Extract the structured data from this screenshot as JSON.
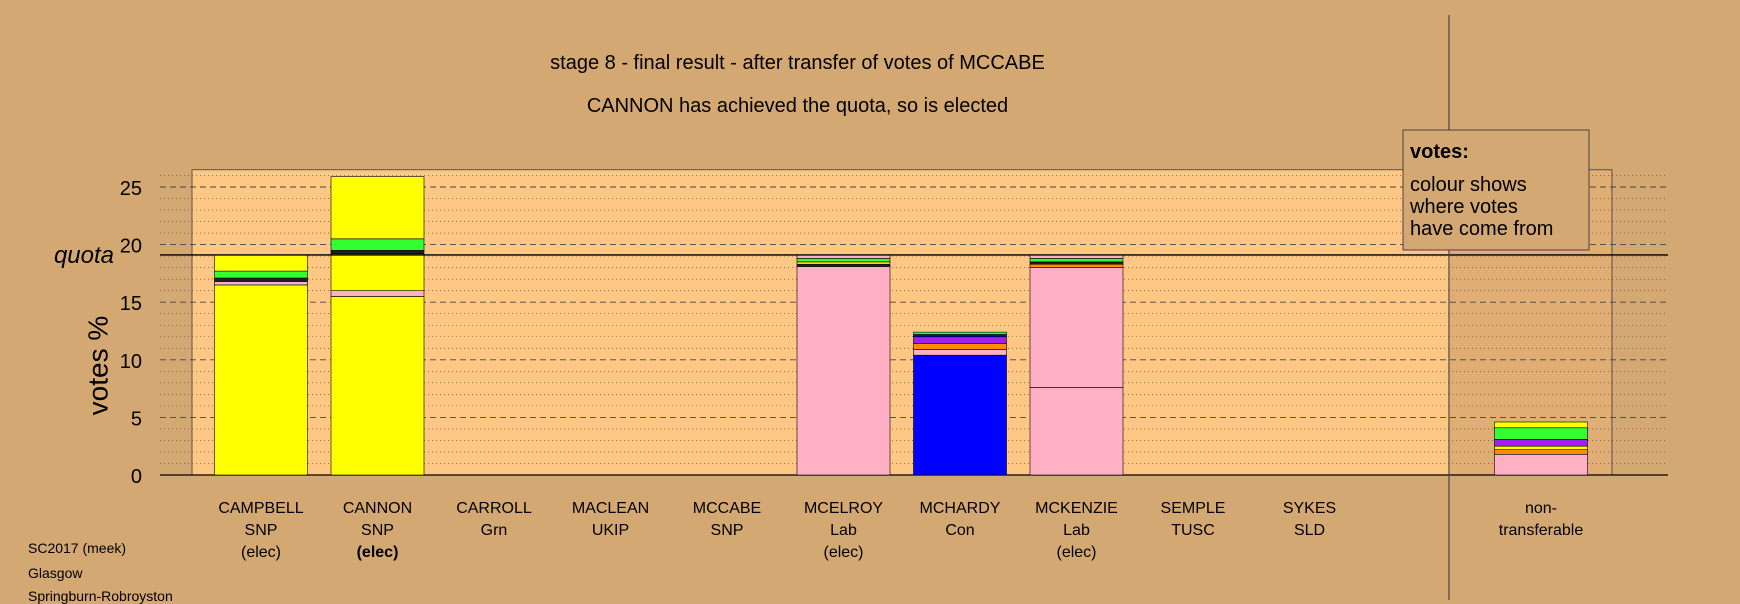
{
  "header": {
    "title": "stage 8 - final result - after transfer of votes of MCCABE",
    "subtitle": "CANNON has achieved the quota, so is elected"
  },
  "footer": {
    "line1": "SC2017 (meek)",
    "line2": "Glasgow",
    "line3": "Springburn-Robroyston"
  },
  "legend": {
    "title": "votes:",
    "lines": [
      "colour shows",
      "where votes",
      "have come from"
    ]
  },
  "colors": {
    "background": "#D4A872",
    "plot_bg": "#FFC784",
    "SNP": "#FFFF00",
    "Lab": "#FFB0C4",
    "Con": "#0000FF",
    "Grn": "#33FF33",
    "UKIP": "#A020F0",
    "TUSC": "#E05050",
    "SLD": "#FF8C00",
    "other": "#202020"
  },
  "chart_data": {
    "type": "bar",
    "stacked": true,
    "ylabel": "votes %",
    "ylim": [
      0,
      26.5
    ],
    "yticks": [
      0,
      5,
      10,
      15,
      20,
      25
    ],
    "quota": 19.1,
    "quota_label": "quota",
    "grid": "dashed every 5, dotted every 1",
    "legend_placement": "top-right",
    "bars": [
      {
        "name": "CAMPBELL",
        "party": "SNP",
        "status": "(elec)",
        "bold": false,
        "segments": [
          {
            "from": "SNP",
            "value": 16.5
          },
          {
            "from": "Lab",
            "value": 0.3
          },
          {
            "from": "other",
            "value": 0.3
          },
          {
            "from": "Grn",
            "value": 0.6
          },
          {
            "from": "SNP",
            "value": 1.4
          }
        ]
      },
      {
        "name": "CANNON",
        "party": "SNP",
        "status": "(elec)",
        "bold": true,
        "segments": [
          {
            "from": "SNP",
            "value": 15.5
          },
          {
            "from": "Lab",
            "value": 0.5
          },
          {
            "from": "SNP",
            "value": 3.2
          },
          {
            "from": "other",
            "value": 0.3
          },
          {
            "from": "Grn",
            "value": 1.0
          },
          {
            "from": "SNP",
            "value": 5.4
          }
        ]
      },
      {
        "name": "CARROLL",
        "party": "Grn",
        "status": "",
        "bold": false,
        "segments": []
      },
      {
        "name": "MACLEAN",
        "party": "UKIP",
        "status": "",
        "bold": false,
        "segments": []
      },
      {
        "name": "MCCABE",
        "party": "SNP",
        "status": "",
        "bold": false,
        "segments": []
      },
      {
        "name": "MCELROY",
        "party": "Lab",
        "status": "(elec)",
        "bold": false,
        "segments": [
          {
            "from": "Lab",
            "value": 18.1
          },
          {
            "from": "other",
            "value": 0.2
          },
          {
            "from": "SNP",
            "value": 0.2
          },
          {
            "from": "Grn",
            "value": 0.3
          },
          {
            "from": "Lab",
            "value": 0.3
          }
        ]
      },
      {
        "name": "MCHARDY",
        "party": "Con",
        "status": "",
        "bold": false,
        "segments": [
          {
            "from": "Con",
            "value": 10.4
          },
          {
            "from": "Lab",
            "value": 0.5
          },
          {
            "from": "SLD",
            "value": 0.5
          },
          {
            "from": "UKIP",
            "value": 0.6
          },
          {
            "from": "Con",
            "value": 0.2
          },
          {
            "from": "Grn",
            "value": 0.2
          }
        ]
      },
      {
        "name": "MCKENZIE",
        "party": "Lab",
        "status": "(elec)",
        "bold": false,
        "segments": [
          {
            "from": "Lab",
            "value": 7.6
          },
          {
            "from": "Lab",
            "value": 10.4
          },
          {
            "from": "SLD",
            "value": 0.3
          },
          {
            "from": "other",
            "value": 0.2
          },
          {
            "from": "Grn",
            "value": 0.3
          },
          {
            "from": "Lab",
            "value": 0.3
          }
        ]
      },
      {
        "name": "SEMPLE",
        "party": "TUSC",
        "status": "",
        "bold": false,
        "segments": []
      },
      {
        "name": "SYKES",
        "party": "SLD",
        "status": "",
        "bold": false,
        "segments": []
      }
    ],
    "nontransferable": {
      "label_line1": "non-",
      "label_line2": "transferable",
      "segments": [
        {
          "from": "Lab",
          "value": 1.8
        },
        {
          "from": "SLD",
          "value": 0.4
        },
        {
          "from": "SNP",
          "value": 0.3
        },
        {
          "from": "UKIP",
          "value": 0.6
        },
        {
          "from": "Grn",
          "value": 1.0
        },
        {
          "from": "SNP",
          "value": 0.5
        }
      ]
    }
  }
}
